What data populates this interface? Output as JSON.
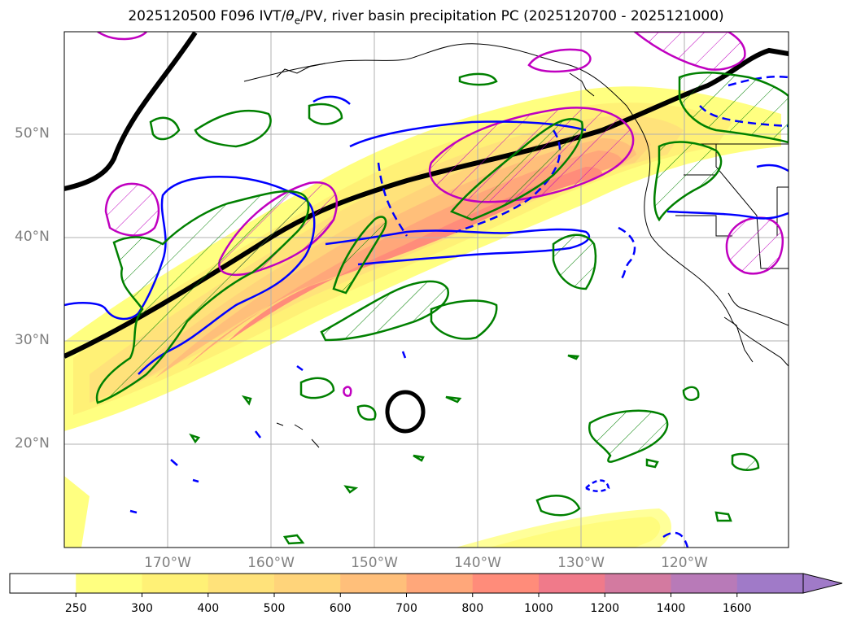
{
  "title": {
    "prefix": "2025120500 F096 IVT/",
    "theta": "θ",
    "theta_sub": "e",
    "suffix": "/PV, river basin precipitation PC (2025120700 - 2025121000)"
  },
  "lat_labels": [
    "50°N",
    "40°N",
    "30°N",
    "20°N"
  ],
  "lon_labels": [
    "170°W",
    "160°W",
    "150°W",
    "140°W",
    "130°W",
    "120°W"
  ],
  "colorbar": {
    "ticks": [
      "250",
      "300",
      "400",
      "500",
      "600",
      "700",
      "800",
      "1000",
      "1200",
      "1400",
      "1600"
    ],
    "colors": [
      "#ffffff",
      "#ffff80",
      "#fff176",
      "#ffe27a",
      "#ffd47a",
      "#ffbf7a",
      "#ffa77a",
      "#ff8c7a",
      "#f07a8a",
      "#d37aa0",
      "#b87ab8",
      "#a07ac8"
    ]
  },
  "colors": {
    "ivt_fill": "#ffe27a",
    "pv_contour": "#c000c0",
    "theta_contour": "#0000ff",
    "precip_contour": "#008000",
    "jet": "#000000"
  }
}
